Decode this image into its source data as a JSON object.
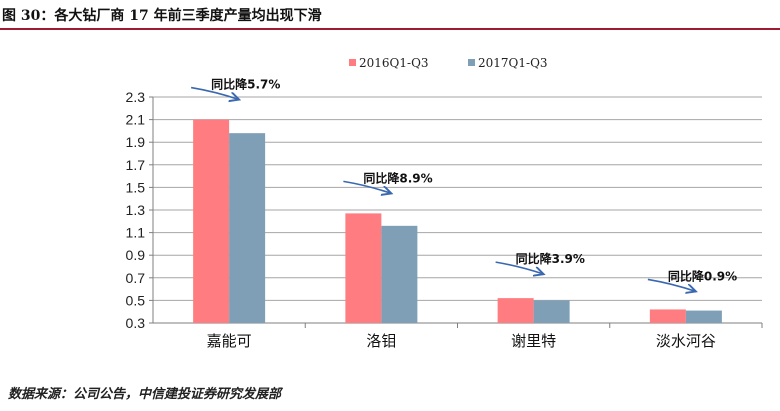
{
  "header": {
    "title": "图 30：各大钻厂商 17 年前三季度产量均出现下滑"
  },
  "footer": {
    "source": "数据来源：公司公告，中信建投证券研究发展部"
  },
  "colors": {
    "series_2016": "#ff7c80",
    "series_2017": "#7f9fb7",
    "arrow": "#3a68b0",
    "title_rule": "#9e1b32"
  },
  "chart_data": {
    "type": "bar",
    "categories": [
      "嘉能可",
      "洛钼",
      "谢里特",
      "淡水河谷"
    ],
    "series": [
      {
        "name": "2016Q1-Q3",
        "values": [
          2.1,
          1.27,
          0.52,
          0.42
        ]
      },
      {
        "name": "2017Q1-Q3",
        "values": [
          1.98,
          1.16,
          0.5,
          0.41
        ]
      }
    ],
    "annotations": [
      "同比降5.7%",
      "同比降8.9%",
      "同比降3.9%",
      "同比降0.9%"
    ],
    "ylim": [
      0.3,
      2.3
    ],
    "yticks": [
      "2.3",
      "2.1",
      "1.9",
      "1.7",
      "1.5",
      "1.3",
      "1.1",
      "0.9",
      "0.7",
      "0.5",
      "0.3"
    ],
    "xlabel": "",
    "ylabel": "",
    "grid": true,
    "legend": "top"
  }
}
